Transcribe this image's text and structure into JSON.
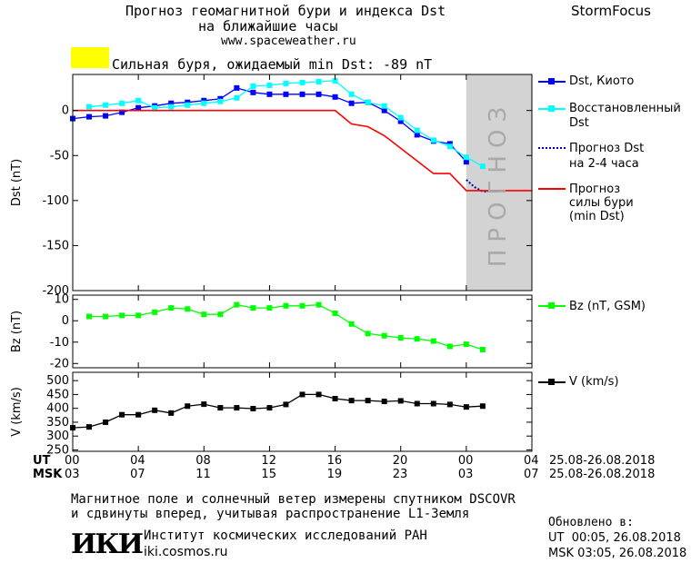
{
  "header": {
    "title_line1": "Прогноз геомагнитной бури и индекса Dst",
    "title_line2": "на ближайшие часы",
    "url": "www.spaceweather.ru",
    "brand": "StormFocus",
    "alert_text": "Сильная буря, ожидаемый min Dst: -89 nT",
    "alert_color": "#ffff00"
  },
  "forecast_band_label": "ПРОГНОЗ",
  "legend": {
    "dst_kyoto": "Dst, Киото",
    "reconstructed_line1": "Восстановленный",
    "reconstructed_line2": "Dst",
    "forecast_line1": "Прогноз Dst",
    "forecast_line2": "на 2-4 часа",
    "storm_line1": "Прогноз",
    "storm_line2": "силы бури",
    "storm_line3": "(min Dst)",
    "bz": "Bz (nT, GSM)",
    "v": "V (km/s)"
  },
  "axis": {
    "ut_label": "UT",
    "msk_label": "MSK",
    "ut_ticks": [
      "00",
      "04",
      "08",
      "12",
      "16",
      "20",
      "00",
      "04"
    ],
    "msk_ticks": [
      "03",
      "07",
      "11",
      "15",
      "19",
      "23",
      "03",
      "07"
    ],
    "ut_date_range": "25.08-26.08.2018",
    "msk_date_range": "25.08-26.08.2018"
  },
  "footer": {
    "note_line1": "Магнитное поле и солнечный ветер измерены спутником DSCOVR",
    "note_line2": "и сдвинуты вперед, учитывая распространение L1-Земля",
    "logo_text": "ИКИ",
    "institute": "Институт космических исследований РАН",
    "institute_url": "iki.cosmos.ru",
    "updated_label": "Обновлено в:",
    "updated_ut": "UT  00:05, 26.08.2018",
    "updated_msk": "MSK 03:05, 26.08.2018"
  },
  "colors": {
    "dst_kyoto": "#0000ff",
    "reconstructed": "#00ffff",
    "forecast": "#0000aa",
    "storm": "#ff0000",
    "bz": "#00ff00",
    "v": "#000000",
    "forecast_band": "#d3d3d3"
  },
  "chart_data": [
    {
      "type": "line",
      "ylabel": "Dst (nT)",
      "xlim": [
        0,
        28
      ],
      "ylim": [
        -200,
        40
      ],
      "yticks": [
        0,
        -50,
        -100,
        -150,
        -200
      ],
      "forecast_band_x": [
        24,
        28
      ],
      "series": [
        {
          "name": "Dst, Киото",
          "x": [
            0,
            1,
            2,
            3,
            4,
            5,
            6,
            7,
            8,
            9,
            10,
            11,
            12,
            13,
            14,
            15,
            16,
            17,
            18,
            19,
            20,
            21,
            22,
            23,
            24
          ],
          "values": [
            -9,
            -7,
            -6,
            -2,
            3,
            5,
            8,
            9,
            11,
            13,
            25,
            20,
            18,
            18,
            18,
            18,
            15,
            8,
            9,
            0,
            -12,
            -27,
            -34,
            -37,
            -57
          ]
        },
        {
          "name": "Восстановленный Dst",
          "x": [
            1,
            2,
            3,
            4,
            5,
            6,
            7,
            8,
            9,
            10,
            11,
            12,
            13,
            14,
            15,
            16,
            17,
            18,
            19,
            20,
            21,
            22,
            23,
            24,
            25
          ],
          "values": [
            4,
            6,
            8,
            11,
            3,
            4,
            6,
            8,
            10,
            14,
            27,
            28,
            30,
            31,
            32,
            33,
            18,
            9,
            5,
            -8,
            -22,
            -33,
            -40,
            -52,
            -62
          ]
        },
        {
          "name": "Прогноз Dst на 2-4 часа",
          "x": [
            24,
            24.5,
            25,
            25.5,
            26
          ],
          "values": [
            -77,
            -85,
            -90,
            -90,
            -90
          ]
        },
        {
          "name": "Прогноз силы бури (min Dst)",
          "x": [
            0,
            16,
            17,
            18,
            19,
            20,
            21,
            22,
            23,
            24,
            28
          ],
          "values": [
            0,
            0,
            -15,
            -18,
            -28,
            -42,
            -56,
            -70,
            -70,
            -89,
            -89
          ]
        }
      ]
    },
    {
      "type": "line",
      "ylabel": "Bz (nT)",
      "xlim": [
        0,
        28
      ],
      "ylim": [
        -22,
        12
      ],
      "yticks": [
        10,
        0,
        -10,
        -20
      ],
      "series": [
        {
          "name": "Bz (nT, GSM)",
          "x": [
            1,
            2,
            3,
            4,
            5,
            6,
            7,
            8,
            9,
            10,
            11,
            12,
            13,
            14,
            15,
            16,
            17,
            18,
            19,
            20,
            21,
            22,
            23,
            24,
            25
          ],
          "values": [
            2,
            2,
            2.5,
            2.5,
            4,
            6,
            5.5,
            3,
            3,
            7.5,
            6,
            6,
            7,
            7,
            7.5,
            3.5,
            -1.5,
            -6,
            -7,
            -8,
            -8.5,
            -9.5,
            -12,
            -11,
            -13.5
          ]
        }
      ]
    },
    {
      "type": "line",
      "ylabel": "V (km/s)",
      "xlim": [
        0,
        28
      ],
      "ylim": [
        245,
        530
      ],
      "yticks": [
        500,
        450,
        400,
        350,
        300,
        250
      ],
      "series": [
        {
          "name": "V (km/s)",
          "x": [
            0,
            1,
            2,
            3,
            4,
            5,
            6,
            7,
            8,
            9,
            10,
            11,
            12,
            13,
            14,
            15,
            16,
            17,
            18,
            19,
            20,
            21,
            22,
            23,
            24,
            25
          ],
          "values": [
            330,
            333,
            350,
            377,
            377,
            393,
            383,
            408,
            415,
            402,
            402,
            399,
            402,
            414,
            450,
            450,
            435,
            428,
            428,
            425,
            427,
            417,
            417,
            414,
            405,
            408
          ]
        }
      ]
    }
  ]
}
